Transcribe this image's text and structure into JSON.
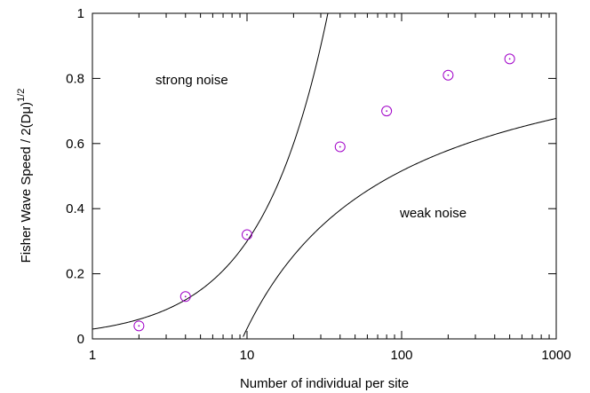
{
  "chart_data": {
    "type": "scatter",
    "title": "",
    "xlabel": "Number of individual per site",
    "ylabel": "Fisher Wave Speed / 2(Dμ)",
    "ylabel_superscript": "1/2",
    "xscale": "log",
    "xlim": [
      1,
      1000
    ],
    "ylim": [
      0,
      1
    ],
    "x_ticks": [
      1,
      10,
      100,
      1000
    ],
    "x_tick_labels": [
      "1",
      "10",
      "100",
      "1000"
    ],
    "y_ticks": [
      0,
      0.2,
      0.4,
      0.6,
      0.8,
      1
    ],
    "y_tick_labels": [
      "0",
      "0.2",
      "0.4",
      "0.6",
      "0.8",
      "1"
    ],
    "grid": false,
    "series": [
      {
        "marker": "circle-with-dot",
        "color": "#a000c8",
        "points": [
          {
            "x": 2,
            "y": 0.04
          },
          {
            "x": 4,
            "y": 0.13
          },
          {
            "x": 10,
            "y": 0.32
          },
          {
            "x": 40,
            "y": 0.59
          },
          {
            "x": 80,
            "y": 0.7
          },
          {
            "x": 200,
            "y": 0.81
          },
          {
            "x": 500,
            "y": 0.86
          }
        ]
      }
    ],
    "curves": [
      {
        "id": "strong",
        "kind": "power",
        "coef": 0.03,
        "exponent": 1.0
      },
      {
        "id": "weak",
        "kind": "inverse-log",
        "asymptote": 1.0,
        "k": 2.23
      }
    ],
    "annotations": [
      "strong noise",
      "weak noise"
    ]
  }
}
